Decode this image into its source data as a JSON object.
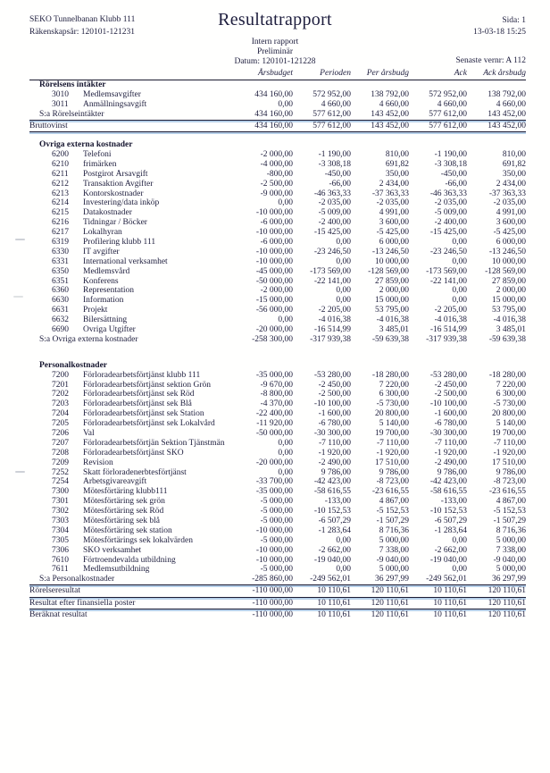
{
  "header": {
    "company": "SEKO Tunnelbanan Klubb 111",
    "fiscal_year": "Räkenskapsår: 120101-121231",
    "title": "Resultatrapport",
    "page": "Sida: 1",
    "printed": "13-03-18 15:25",
    "report_type": "Intern rapport",
    "status": "Preliminär",
    "date_range": "Datum: 120101-121228",
    "last_verification": "Senaste vernr: A 112"
  },
  "colors": {
    "text": "#1d1d3d",
    "rule": "#1c1c34",
    "rule_accent": "#6ea0d2"
  },
  "table": {
    "columns": [
      "Årsbudget",
      "Perioden",
      "Per årsbudg",
      "Ack",
      "Ack årsbudg"
    ],
    "rows": [
      {
        "type": "section",
        "label": "Rörelsens intäkter"
      },
      {
        "type": "account",
        "code": "3010",
        "label": "Medlemsavgifter",
        "values": [
          "434 160,00",
          "572 952,00",
          "138 792,00",
          "572 952,00",
          "138 792,00"
        ]
      },
      {
        "type": "account",
        "code": "3011",
        "label": "Anmällningsavgift",
        "values": [
          "0,00",
          "4 660,00",
          "4 660,00",
          "4 660,00",
          "4 660,00"
        ]
      },
      {
        "type": "sum",
        "label": "S:a Rörelseintäkter",
        "rule_below": true,
        "values": [
          "434 160,00",
          "577 612,00",
          "143 452,00",
          "577 612,00",
          "143 452,00"
        ]
      },
      {
        "type": "total",
        "label": "Bruttovinst",
        "rule_below": true,
        "values": [
          "434 160,00",
          "577 612,00",
          "143 452,00",
          "577 612,00",
          "143 452,00"
        ]
      },
      {
        "type": "spacer"
      },
      {
        "type": "section",
        "label": "Övriga externa kostnader"
      },
      {
        "type": "account",
        "code": "6200",
        "label": "Telefoni",
        "values": [
          "-2 000,00",
          "-1 190,00",
          "810,00",
          "-1 190,00",
          "810,00"
        ]
      },
      {
        "type": "account",
        "code": "6210",
        "label": "frimärken",
        "values": [
          "-4 000,00",
          "-3 308,18",
          "691,82",
          "-3 308,18",
          "691,82"
        ]
      },
      {
        "type": "account",
        "code": "6211",
        "label": "Postgirot Årsavgift",
        "values": [
          "-800,00",
          "-450,00",
          "350,00",
          "-450,00",
          "350,00"
        ]
      },
      {
        "type": "account",
        "code": "6212",
        "label": "Transaktion Avgifter",
        "values": [
          "-2 500,00",
          "-66,00",
          "2 434,00",
          "-66,00",
          "2 434,00"
        ]
      },
      {
        "type": "account",
        "code": "6213",
        "label": "Kontorskostnader",
        "values": [
          "-9 000,00",
          "-46 363,33",
          "-37 363,33",
          "-46 363,33",
          "-37 363,33"
        ]
      },
      {
        "type": "account",
        "code": "6214",
        "label": "Investering/data inköp",
        "values": [
          "0,00",
          "-2 035,00",
          "-2 035,00",
          "-2 035,00",
          "-2 035,00"
        ]
      },
      {
        "type": "account",
        "code": "6215",
        "label": "Datakostnader",
        "values": [
          "-10 000,00",
          "-5 009,00",
          "4 991,00",
          "-5 009,00",
          "4 991,00"
        ]
      },
      {
        "type": "account",
        "code": "6216",
        "label": "Tidningar / Böcker",
        "values": [
          "-6 000,00",
          "-2 400,00",
          "3 600,00",
          "-2 400,00",
          "3 600,00"
        ]
      },
      {
        "type": "account",
        "code": "6217",
        "label": "Lokalhyran",
        "values": [
          "-10 000,00",
          "-15 425,00",
          "-5 425,00",
          "-15 425,00",
          "-5 425,00"
        ]
      },
      {
        "type": "account",
        "code": "6319",
        "label": "Profilering klubb 111",
        "values": [
          "-6 000,00",
          "0,00",
          "6 000,00",
          "0,00",
          "6 000,00"
        ]
      },
      {
        "type": "account",
        "code": "6330",
        "label": "IT avgifter",
        "values": [
          "-10 000,00",
          "-23 246,50",
          "-13 246,50",
          "-23 246,50",
          "-13 246,50"
        ]
      },
      {
        "type": "account",
        "code": "6331",
        "label": "International verksamhet",
        "values": [
          "-10 000,00",
          "0,00",
          "10 000,00",
          "0,00",
          "10 000,00"
        ]
      },
      {
        "type": "account",
        "code": "6350",
        "label": "Medlemsvård",
        "values": [
          "-45 000,00",
          "-173 569,00",
          "-128 569,00",
          "-173 569,00",
          "-128 569,00"
        ]
      },
      {
        "type": "account",
        "code": "6351",
        "label": "Konferens",
        "values": [
          "-50 000,00",
          "-22 141,00",
          "27 859,00",
          "-22 141,00",
          "27 859,00"
        ]
      },
      {
        "type": "account",
        "code": "6360",
        "label": "Representation",
        "values": [
          "-2 000,00",
          "0,00",
          "2 000,00",
          "0,00",
          "2 000,00"
        ]
      },
      {
        "type": "account",
        "code": "6630",
        "label": "Information",
        "values": [
          "-15 000,00",
          "0,00",
          "15 000,00",
          "0,00",
          "15 000,00"
        ]
      },
      {
        "type": "account",
        "code": "6631",
        "label": "Projekt",
        "values": [
          "-56 000,00",
          "-2 205,00",
          "53 795,00",
          "-2 205,00",
          "53 795,00"
        ]
      },
      {
        "type": "account",
        "code": "6632",
        "label": "Bilersättning",
        "values": [
          "0,00",
          "-4 016,38",
          "-4 016,38",
          "-4 016,38",
          "-4 016,38"
        ]
      },
      {
        "type": "account",
        "code": "6690",
        "label": "Övriga Utgifter",
        "values": [
          "-20 000,00",
          "-16 514,99",
          "3 485,01",
          "-16 514,99",
          "3 485,01"
        ]
      },
      {
        "type": "sum",
        "label": "S:a Övriga externa kostnader",
        "values": [
          "-258 300,00",
          "-317 939,38",
          "-59 639,38",
          "-317 939,38",
          "-59 639,38"
        ]
      },
      {
        "type": "spacer",
        "tall": true
      },
      {
        "type": "section",
        "label": "Personalkostnader"
      },
      {
        "type": "account",
        "code": "7200",
        "label": "Förloradearbetsförtjänst klubb 111",
        "values": [
          "-35 000,00",
          "-53 280,00",
          "-18 280,00",
          "-53 280,00",
          "-18 280,00"
        ]
      },
      {
        "type": "account",
        "code": "7201",
        "label": "Förloradearbetsförtjänst sektion Grön",
        "values": [
          "-9 670,00",
          "-2 450,00",
          "7 220,00",
          "-2 450,00",
          "7 220,00"
        ]
      },
      {
        "type": "account",
        "code": "7202",
        "label": "Förloradearbetsförtjänst sek Röd",
        "values": [
          "-8 800,00",
          "-2 500,00",
          "6 300,00",
          "-2 500,00",
          "6 300,00"
        ]
      },
      {
        "type": "account",
        "code": "7203",
        "label": "Förloradearbetsförtjänst sek Blå",
        "values": [
          "-4 370,00",
          "-10 100,00",
          "-5 730,00",
          "-10 100,00",
          "-5 730,00"
        ]
      },
      {
        "type": "account",
        "code": "7204",
        "label": "Förloradearbetsförtjänst sek Station",
        "values": [
          "-22 400,00",
          "-1 600,00",
          "20 800,00",
          "-1 600,00",
          "20 800,00"
        ]
      },
      {
        "type": "account",
        "code": "7205",
        "label": "Förloradearbetsförtjänst sek Lokalvård",
        "values": [
          "-11 920,00",
          "-6 780,00",
          "5 140,00",
          "-6 780,00",
          "5 140,00"
        ]
      },
      {
        "type": "account",
        "code": "7206",
        "label": "Val",
        "values": [
          "-50 000,00",
          "-30 300,00",
          "19 700,00",
          "-30 300,00",
          "19 700,00"
        ]
      },
      {
        "type": "account",
        "code": "7207",
        "label": "Förloradearbetsförtjän Sektion Tjänstmän",
        "values": [
          "0,00",
          "-7 110,00",
          "-7 110,00",
          "-7 110,00",
          "-7 110,00"
        ]
      },
      {
        "type": "account",
        "code": "7208",
        "label": "Förloradearbetsförtjänst SKO",
        "values": [
          "0,00",
          "-1 920,00",
          "-1 920,00",
          "-1 920,00",
          "-1 920,00"
        ]
      },
      {
        "type": "account",
        "code": "7209",
        "label": "Revision",
        "values": [
          "-20 000,00",
          "-2 490,00",
          "17 510,00",
          "-2 490,00",
          "17 510,00"
        ]
      },
      {
        "type": "account",
        "code": "7252",
        "label": "Skatt förloradenerbtesförtjänst",
        "values": [
          "0,00",
          "9 786,00",
          "9 786,00",
          "9 786,00",
          "9 786,00"
        ]
      },
      {
        "type": "account",
        "code": "7254",
        "label": "Arbetsgivareavgift",
        "values": [
          "-33 700,00",
          "-42 423,00",
          "-8 723,00",
          "-42 423,00",
          "-8 723,00"
        ]
      },
      {
        "type": "account",
        "code": "7300",
        "label": "Mötesförtäring klubb111",
        "values": [
          "-35 000,00",
          "-58 616,55",
          "-23 616,55",
          "-58 616,55",
          "-23 616,55"
        ]
      },
      {
        "type": "account",
        "code": "7301",
        "label": "Mötesförtäring sek grön",
        "values": [
          "-5 000,00",
          "-133,00",
          "4 867,00",
          "-133,00",
          "4 867,00"
        ]
      },
      {
        "type": "account",
        "code": "7302",
        "label": "Mötesförtäring sek Röd",
        "values": [
          "-5 000,00",
          "-10 152,53",
          "-5 152,53",
          "-10 152,53",
          "-5 152,53"
        ]
      },
      {
        "type": "account",
        "code": "7303",
        "label": "Mötesförtäring sek blå",
        "values": [
          "-5 000,00",
          "-6 507,29",
          "-1 507,29",
          "-6 507,29",
          "-1 507,29"
        ]
      },
      {
        "type": "account",
        "code": "7304",
        "label": "Mötesförtäring sek station",
        "values": [
          "-10 000,00",
          "-1 283,64",
          "8 716,36",
          "-1 283,64",
          "8 716,36"
        ]
      },
      {
        "type": "account",
        "code": "7305",
        "label": "Mötesförtärings sek lokalvärden",
        "values": [
          "-5 000,00",
          "0,00",
          "5 000,00",
          "0,00",
          "5 000,00"
        ]
      },
      {
        "type": "account",
        "code": "7306",
        "label": "SKO verksamhet",
        "values": [
          "-10 000,00",
          "-2 662,00",
          "7 338,00",
          "-2 662,00",
          "7 338,00"
        ]
      },
      {
        "type": "account",
        "code": "7610",
        "label": "Förtroendevalda utbildning",
        "values": [
          "-10 000,00",
          "-19 040,00",
          "-9 040,00",
          "-19 040,00",
          "-9 040,00"
        ]
      },
      {
        "type": "account",
        "code": "7611",
        "label": "Medlemsutbildning",
        "values": [
          "-5 000,00",
          "0,00",
          "5 000,00",
          "0,00",
          "5 000,00"
        ]
      },
      {
        "type": "sum",
        "label": "S:a Personalkostnader",
        "rule_below": true,
        "values": [
          "-285 860,00",
          "-249 562,01",
          "36 297,99",
          "-249 562,01",
          "36 297,99"
        ]
      },
      {
        "type": "total",
        "label": "Rörelseresultat",
        "rule_below": true,
        "values": [
          "-110 000,00",
          "10 110,61",
          "120 110,61",
          "10 110,61",
          "120 110,61"
        ]
      },
      {
        "type": "total",
        "label": "Resultat efter finansiella poster",
        "rule_below": true,
        "values": [
          "-110 000,00",
          "10 110,61",
          "120 110,61",
          "10 110,61",
          "120 110,61"
        ]
      },
      {
        "type": "total",
        "label": "Beräknat resultat",
        "values": [
          "-110 000,00",
          "10 110,61",
          "120 110,61",
          "10 110,61",
          "120 110,61"
        ]
      }
    ]
  }
}
